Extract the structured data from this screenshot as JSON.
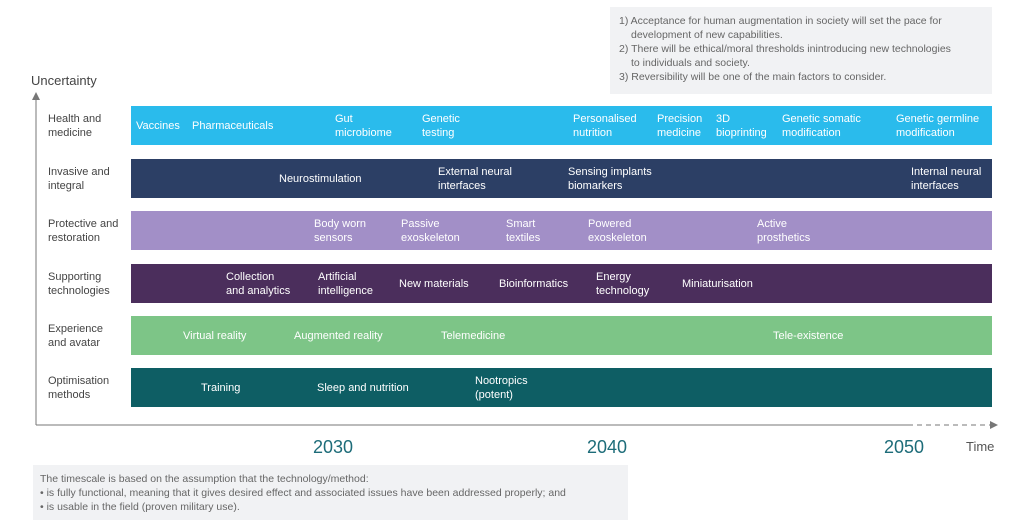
{
  "notes": [
    "1) Acceptance for human augmentation in society will set the pace for",
    "development of new capabilities.",
    "2) There will be ethical/moral thresholds inintroducing new technologies",
    "to individuals and society.",
    "3) Reversibility will be one of the main factors to consider."
  ],
  "y_axis_label": "Uncertainty",
  "x_axis_label": "Time",
  "years": [
    "2030",
    "2040",
    "2050"
  ],
  "rows": [
    {
      "label": [
        "Health and",
        "medicine"
      ],
      "color": "#2abbec",
      "items": [
        [
          "Vaccines"
        ],
        [
          "Pharmaceuticals"
        ],
        [
          "Gut",
          "microbiome"
        ],
        [
          "Genetic",
          "testing"
        ],
        [
          "Personalised",
          "nutrition"
        ],
        [
          "Precision",
          "medicine"
        ],
        [
          "3D",
          "bioprinting"
        ],
        [
          "Genetic somatic",
          "modification"
        ],
        [
          "Genetic germline",
          "modification"
        ]
      ]
    },
    {
      "label": [
        "Invasive and",
        "integral"
      ],
      "color": "#2c3f65",
      "items": [
        [
          "Neurostimulation"
        ],
        [
          "External neural",
          "interfaces"
        ],
        [
          "Sensing implants",
          "biomarkers"
        ],
        [
          "Internal neural",
          "interfaces"
        ]
      ]
    },
    {
      "label": [
        "Protective and",
        "restoration"
      ],
      "color": "#a28fc7",
      "items": [
        [
          "Body worn",
          "sensors"
        ],
        [
          "Passive",
          "exoskeleton"
        ],
        [
          "Smart",
          "textiles"
        ],
        [
          "Powered",
          "exoskeleton"
        ],
        [
          "Active",
          "prosthetics"
        ]
      ]
    },
    {
      "label": [
        "Supporting",
        "technologies"
      ],
      "color": "#4b2e5c",
      "items": [
        [
          "Collection",
          "and analytics"
        ],
        [
          "Artificial",
          "intelligence"
        ],
        [
          "New materials"
        ],
        [
          "Bioinformatics"
        ],
        [
          "Energy",
          "technology"
        ],
        [
          "Miniaturisation"
        ]
      ]
    },
    {
      "label": [
        "Experience",
        "and avatar"
      ],
      "color": "#7dc587",
      "items": [
        [
          "Virtual reality"
        ],
        [
          "Augmented reality"
        ],
        [
          "Telemedicine"
        ],
        [
          "Tele-existence"
        ]
      ]
    },
    {
      "label": [
        "Optimisation",
        "methods"
      ],
      "color": "#0e5e64",
      "items": [
        [
          "Training"
        ],
        [
          "Sleep and nutrition"
        ],
        [
          "Nootropics",
          "(potent)"
        ]
      ]
    }
  ],
  "footnote": [
    "The timescale is based on the assumption that the technology/method:",
    "• is fully functional, meaning that it gives desired effect and associated issues have been addressed properly; and",
    "• is usable in the field (proven military use)."
  ]
}
